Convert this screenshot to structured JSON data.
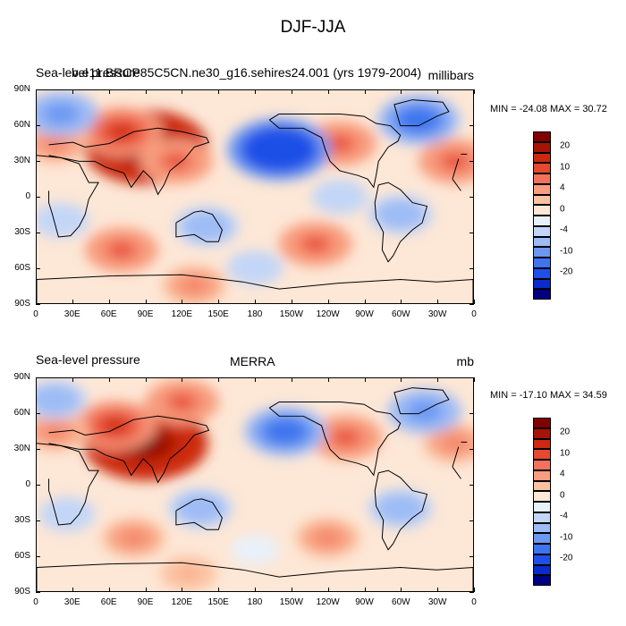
{
  "page_title": "DJF-JJA",
  "colorbar_colors": [
    "#000080",
    "#0a2ccc",
    "#1f4fe6",
    "#3e74ee",
    "#6c98f2",
    "#9dbbf5",
    "#c3d6f7",
    "#e8f1fa",
    "#fde7d6",
    "#fbc2a1",
    "#f89d7e",
    "#f1735c",
    "#e5492f",
    "#cc2910",
    "#a61405",
    "#800000"
  ],
  "colorbar_labels": [
    "-20",
    "-10",
    "-4",
    "0",
    "4",
    "10",
    "20"
  ],
  "axes": {
    "lat_labels": [
      "90N",
      "60N",
      "30N",
      "0",
      "30S",
      "60S",
      "90S"
    ],
    "lon_labels": [
      "0",
      "30E",
      "60E",
      "90E",
      "120E",
      "150E",
      "180",
      "150W",
      "120W",
      "90W",
      "60W",
      "30W",
      "0"
    ]
  },
  "panels": [
    {
      "id": "model",
      "left_title": "Sea-level pressure",
      "center_title": "b.e11.BRCP85C5CN.ne30_g16.sehires24.001 (yrs 1979-2004)",
      "right_title": "millibars",
      "stats": "MIN = -24.08 MAX =  30.72"
    },
    {
      "id": "merra",
      "left_title": "Sea-level pressure",
      "center_title": "MERRA",
      "right_title": "mb",
      "stats": "MIN = -17.10 MAX =  34.59"
    }
  ],
  "chart_data": [
    {
      "type": "heatmap",
      "title": "DJF-JJA",
      "subtitle": "b.e11.BRCP85C5CN.ne30_g16.sehires24.001 (yrs 1979-2004)",
      "variable": "Sea-level pressure",
      "units": "millibars",
      "x_range": [
        0,
        360
      ],
      "y_range": [
        -90,
        90
      ],
      "min": -24.08,
      "max": 30.72,
      "levels": [
        -20,
        -15,
        -10,
        -8,
        -6,
        -4,
        -2,
        0,
        2,
        4,
        6,
        8,
        10,
        15,
        20
      ],
      "anomalies": [
        {
          "lon": 90,
          "lat": 42,
          "value": 20
        },
        {
          "lon": 70,
          "lat": 55,
          "value": 10
        },
        {
          "lon": 115,
          "lat": 30,
          "value": 8
        },
        {
          "lon": 15,
          "lat": 45,
          "value": 6
        },
        {
          "lon": 250,
          "lat": 45,
          "value": 8
        },
        {
          "lon": 345,
          "lat": 30,
          "value": 8
        },
        {
          "lon": 70,
          "lat": -45,
          "value": 8
        },
        {
          "lon": 230,
          "lat": -40,
          "value": 8
        },
        {
          "lon": 130,
          "lat": -75,
          "value": 6
        },
        {
          "lon": 200,
          "lat": 40,
          "value": -15
        },
        {
          "lon": 315,
          "lat": 65,
          "value": -10
        },
        {
          "lon": 20,
          "lat": 70,
          "value": -8
        },
        {
          "lon": 140,
          "lat": -25,
          "value": -6
        },
        {
          "lon": 20,
          "lat": -20,
          "value": -4
        },
        {
          "lon": 300,
          "lat": -15,
          "value": -6
        },
        {
          "lon": 250,
          "lat": 0,
          "value": -4
        },
        {
          "lon": 180,
          "lat": -60,
          "value": -4
        }
      ]
    },
    {
      "type": "heatmap",
      "title": "MERRA",
      "variable": "Sea-level pressure",
      "units": "mb",
      "x_range": [
        0,
        360
      ],
      "y_range": [
        -90,
        90
      ],
      "min": -17.1,
      "max": 34.59,
      "levels": [
        -20,
        -15,
        -10,
        -8,
        -6,
        -4,
        -2,
        0,
        2,
        4,
        6,
        8,
        10,
        15,
        20
      ],
      "anomalies": [
        {
          "lon": 90,
          "lat": 35,
          "value": 20
        },
        {
          "lon": 65,
          "lat": 50,
          "value": 10
        },
        {
          "lon": 120,
          "lat": 70,
          "value": 8
        },
        {
          "lon": 15,
          "lat": 45,
          "value": 6
        },
        {
          "lon": 255,
          "lat": 40,
          "value": 8
        },
        {
          "lon": 345,
          "lat": 35,
          "value": 6
        },
        {
          "lon": 80,
          "lat": -45,
          "value": 6
        },
        {
          "lon": 240,
          "lat": -45,
          "value": 6
        },
        {
          "lon": 125,
          "lat": -75,
          "value": 4
        },
        {
          "lon": 205,
          "lat": 45,
          "value": -10
        },
        {
          "lon": 320,
          "lat": 62,
          "value": -8
        },
        {
          "lon": 15,
          "lat": 72,
          "value": -6
        },
        {
          "lon": 135,
          "lat": -20,
          "value": -6
        },
        {
          "lon": 25,
          "lat": -25,
          "value": -4
        },
        {
          "lon": 300,
          "lat": -20,
          "value": -6
        },
        {
          "lon": 180,
          "lat": -55,
          "value": -2
        }
      ]
    }
  ]
}
